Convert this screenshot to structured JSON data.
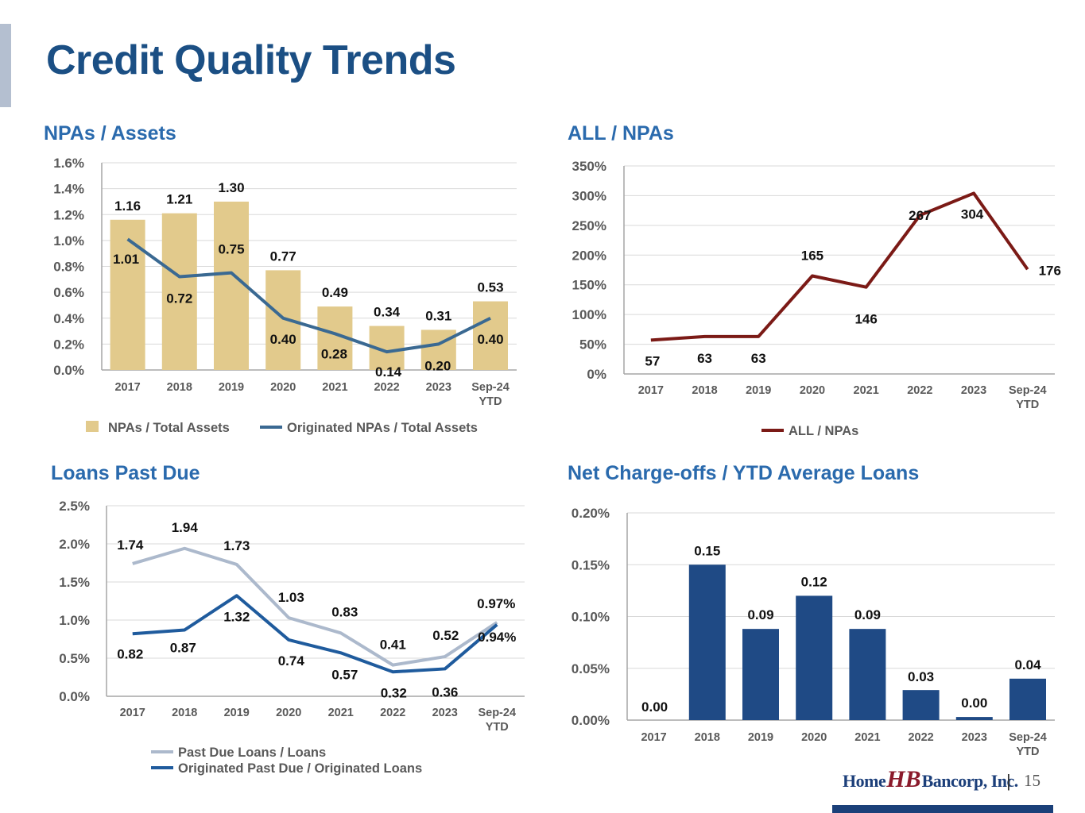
{
  "page": {
    "title": "Credit Quality Trends",
    "page_number": "15",
    "separator": "|",
    "logo": {
      "part1": "Home",
      "part2": "HB",
      "part3": "Bancorp, Inc."
    }
  },
  "colors": {
    "title": "#1b4f84",
    "subtitle": "#2a6aad",
    "gold_bar": "#e2ca8c",
    "steel_line": "#3a6992",
    "maroon_line": "#7b1a16",
    "light_line": "#acb9cc",
    "navy_line": "#1f5b9d",
    "navy_bar": "#1f4a85"
  },
  "chart_data": [
    {
      "id": "npas",
      "type": "bar",
      "title": "NPAs / Assets",
      "categories": [
        "2017",
        "2018",
        "2019",
        "2020",
        "2021",
        "2022",
        "2023",
        "Sep-24\nYTD"
      ],
      "y_ticks": [
        "0.0%",
        "0.2%",
        "0.4%",
        "0.6%",
        "0.8%",
        "1.0%",
        "1.2%",
        "1.4%",
        "1.6%"
      ],
      "ylim": [
        0,
        1.6
      ],
      "series": [
        {
          "name": "NPAs / Total Assets",
          "kind": "bar",
          "values": [
            1.16,
            1.21,
            1.3,
            0.77,
            0.49,
            0.34,
            0.31,
            0.53
          ],
          "labels": [
            "1.16",
            "1.21",
            "1.30",
            "0.77",
            "0.49",
            "0.34",
            "0.31",
            "0.53"
          ]
        },
        {
          "name": "Originated NPAs / Total Assets",
          "kind": "line",
          "values": [
            1.01,
            0.72,
            0.75,
            0.4,
            0.28,
            0.14,
            0.2,
            0.4
          ],
          "labels": [
            "1.01",
            "0.72",
            "0.75",
            "0.40",
            "0.28",
            "0.14",
            "0.20",
            "0.40"
          ]
        }
      ],
      "grid": true,
      "legend": "bottom"
    },
    {
      "id": "allnpas",
      "type": "line",
      "title": "ALL / NPAs",
      "categories": [
        "2017",
        "2018",
        "2019",
        "2020",
        "2021",
        "2022",
        "2023",
        "Sep-24\nYTD"
      ],
      "y_ticks": [
        "0%",
        "50%",
        "100%",
        "150%",
        "200%",
        "250%",
        "300%",
        "350%"
      ],
      "ylim": [
        0,
        350
      ],
      "series": [
        {
          "name": "ALL / NPAs",
          "kind": "line",
          "values": [
            57,
            63,
            63,
            165,
            146,
            267,
            304,
            176
          ],
          "labels": [
            "57",
            "63",
            "63",
            "165",
            "146",
            "267",
            "304",
            "176"
          ]
        }
      ],
      "grid": true,
      "legend": "bottom"
    },
    {
      "id": "pastdue",
      "type": "line",
      "title": "Loans Past Due",
      "categories": [
        "2017",
        "2018",
        "2019",
        "2020",
        "2021",
        "2022",
        "2023",
        "Sep-24\nYTD"
      ],
      "y_ticks": [
        "0.0%",
        "0.5%",
        "1.0%",
        "1.5%",
        "2.0%",
        "2.5%"
      ],
      "ylim": [
        0,
        2.5
      ],
      "series": [
        {
          "name": "Past Due Loans / Loans",
          "kind": "line",
          "values": [
            1.74,
            1.94,
            1.73,
            1.03,
            0.83,
            0.41,
            0.52,
            0.97
          ],
          "labels": [
            "1.74",
            "1.94",
            "1.73",
            "1.03",
            "0.83",
            "0.41",
            "0.52",
            "0.97%"
          ]
        },
        {
          "name": "Originated Past Due / Originated Loans",
          "kind": "line",
          "values": [
            0.82,
            0.87,
            1.32,
            0.74,
            0.57,
            0.32,
            0.36,
            0.94
          ],
          "labels": [
            "0.82",
            "0.87",
            "1.32",
            "0.74",
            "0.57",
            "0.32",
            "0.36",
            "0.94%"
          ]
        }
      ],
      "grid": true,
      "legend": "bottom"
    },
    {
      "id": "nco",
      "type": "bar",
      "title": "Net Charge-offs / YTD Average Loans",
      "categories": [
        "2017",
        "2018",
        "2019",
        "2020",
        "2021",
        "2022",
        "2023",
        "Sep-24\nYTD"
      ],
      "y_ticks": [
        "0.00%",
        "0.05%",
        "0.10%",
        "0.15%",
        "0.20%"
      ],
      "ylim": [
        0,
        0.2
      ],
      "series": [
        {
          "name": "",
          "kind": "bar",
          "values": [
            0.0,
            0.15,
            0.088,
            0.12,
            0.088,
            0.029,
            0.003,
            0.04
          ],
          "labels": [
            "0.00",
            "0.15",
            "0.09",
            "0.12",
            "0.09",
            "0.03",
            "0.00",
            "0.04"
          ]
        }
      ],
      "grid": true,
      "legend": "none"
    }
  ]
}
